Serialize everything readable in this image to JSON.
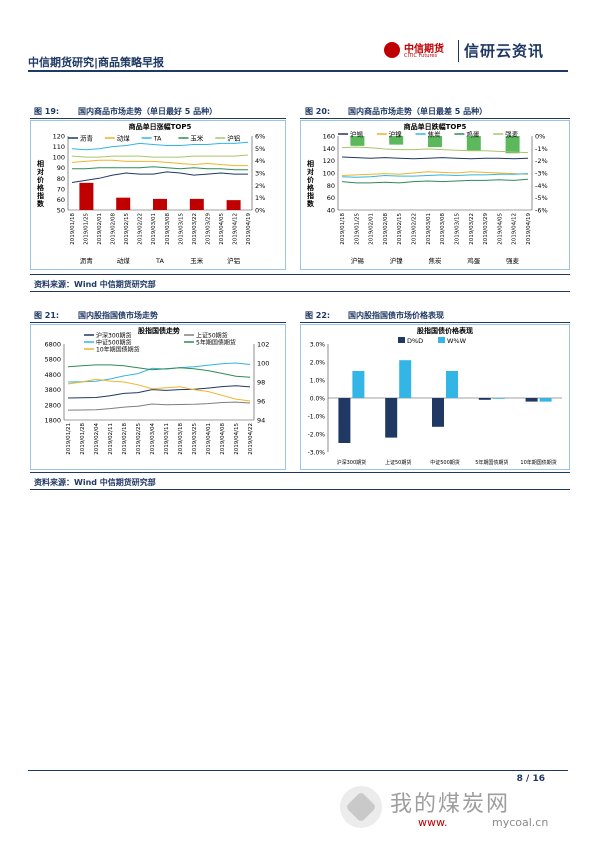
{
  "header": {
    "title": "中信期货研究|商品策略早报",
    "logo_cn": "中信期货",
    "logo_en": "CITIC Futures",
    "brand": "信研云资讯"
  },
  "figures": {
    "fig19": {
      "label": "图 19:",
      "title": "国内商品市场走势（单日最好 5 品种）"
    },
    "fig20": {
      "label": "图 20:",
      "title": "国内商品市场走势（单日最差 5 品种）"
    },
    "fig21": {
      "label": "图 21:",
      "title": "国内股指国债市场走势"
    },
    "fig22": {
      "label": "图 22:",
      "title": "国内股指国债市场价格表现"
    }
  },
  "source1": "资料来源：Wind  中信期货研究部",
  "source2": "资料来源：Wind  中信期货研究部",
  "page_number": "8 / 16",
  "watermark": {
    "cn": "我的煤炭网",
    "url_a": "www.",
    "url_b": "mycoal.cn"
  },
  "colors": {
    "accent": "#1f3864",
    "brand_red": "#c00000",
    "bar_red": "#c00000",
    "bar_green": "#5cb85c",
    "bar_dd": "#1f3864",
    "bar_ww": "#33b5e5"
  },
  "chart_data": [
    {
      "type": "line",
      "title": "商品单日涨幅TOP5",
      "ylabel": "相对价格指数",
      "x": [
        "2019/01/18",
        "2019/01/25",
        "2019/02/01",
        "2019/02/08",
        "2019/02/15",
        "2019/02/22",
        "2019/03/01",
        "2019/03/08",
        "2019/03/15",
        "2019/03/22",
        "2019/03/29",
        "2019/04/05",
        "2019/04/12",
        "2019/04/19"
      ],
      "ylim": [
        50,
        120
      ],
      "y2lim": [
        0,
        6
      ],
      "yticks": [
        50,
        60,
        70,
        80,
        90,
        100,
        110,
        120
      ],
      "y2ticks": [
        "0%",
        "1%",
        "2%",
        "3%",
        "4%",
        "5%",
        "6%"
      ],
      "series": [
        {
          "name": "沥青",
          "color": "#1f3864",
          "values": [
            76,
            78,
            80,
            83,
            85,
            84,
            84,
            86,
            85,
            83,
            84,
            85,
            84,
            84
          ]
        },
        {
          "name": "动煤",
          "color": "#f0b429",
          "values": [
            95,
            96,
            97,
            97,
            96,
            96,
            96,
            95,
            94,
            93,
            94,
            93,
            92,
            92
          ]
        },
        {
          "name": "TA",
          "color": "#33b5e5",
          "values": [
            108,
            107,
            108,
            110,
            111,
            113,
            112,
            111,
            111,
            112,
            112,
            113,
            113,
            114
          ]
        },
        {
          "name": "玉米",
          "color": "#2e8b57",
          "values": [
            89,
            89,
            90,
            90,
            90,
            90,
            91,
            90,
            89,
            90,
            89,
            89,
            88,
            88
          ]
        },
        {
          "name": "沪铝",
          "color": "#a9c56b",
          "values": [
            101,
            100,
            100,
            101,
            101,
            101,
            100,
            100,
            100,
            101,
            101,
            101,
            101,
            102
          ]
        }
      ],
      "bars": {
        "categories": [
          "沥青",
          "动煤",
          "TA",
          "玉米",
          "沪铝"
        ],
        "values": [
          2.2,
          1.0,
          0.9,
          0.9,
          0.8
        ]
      }
    },
    {
      "type": "line",
      "title": "商品单日跌幅TOP5",
      "ylabel": "相对价格指数",
      "x": [
        "2019/01/18",
        "2019/01/25",
        "2019/02/01",
        "2019/02/08",
        "2019/02/15",
        "2019/02/22",
        "2019/03/01",
        "2019/03/08",
        "2019/03/15",
        "2019/03/22",
        "2019/03/29",
        "2019/04/05",
        "2019/04/12",
        "2019/04/19"
      ],
      "ylim": [
        40,
        160
      ],
      "y2lim": [
        -6,
        0
      ],
      "yticks": [
        40,
        60,
        80,
        100,
        120,
        140,
        160
      ],
      "y2ticks": [
        "-6%",
        "-5%",
        "-4%",
        "-3%",
        "-2%",
        "-1%",
        "0%"
      ],
      "series": [
        {
          "name": "沪锡",
          "color": "#1f3864",
          "values": [
            126,
            125,
            124,
            125,
            124,
            123,
            124,
            125,
            124,
            123,
            124,
            124,
            123,
            124
          ]
        },
        {
          "name": "沪镍",
          "color": "#f0b429",
          "values": [
            96,
            97,
            98,
            99,
            98,
            100,
            102,
            101,
            100,
            102,
            101,
            100,
            99,
            98
          ]
        },
        {
          "name": "焦炭",
          "color": "#33b5e5",
          "values": [
            94,
            93,
            94,
            96,
            95,
            95,
            96,
            97,
            96,
            97,
            97,
            98,
            98,
            99
          ]
        },
        {
          "name": "鸡蛋",
          "color": "#2e8b57",
          "values": [
            86,
            84,
            84,
            85,
            84,
            86,
            87,
            86,
            87,
            88,
            88,
            89,
            88,
            90
          ]
        },
        {
          "name": "强麦",
          "color": "#a9c56b",
          "values": [
            141,
            142,
            141,
            139,
            138,
            138,
            139,
            138,
            137,
            136,
            136,
            135,
            134,
            133
          ]
        }
      ],
      "bars": {
        "categories": [
          "沪锡",
          "沪镍",
          "焦炭",
          "鸡蛋",
          "强麦"
        ],
        "values": [
          -0.8,
          -0.7,
          -0.9,
          -1.2,
          -1.4
        ]
      }
    },
    {
      "type": "line",
      "title": "股指国债走势",
      "x": [
        "2019/01/21",
        "2019/01/28",
        "2019/02/04",
        "2019/02/11",
        "2019/02/18",
        "2019/02/25",
        "2019/03/04",
        "2019/03/11",
        "2019/03/18",
        "2019/03/25",
        "2019/04/01",
        "2019/04/08",
        "2019/04/15",
        "2019/04/22"
      ],
      "ylim": [
        1800,
        6800
      ],
      "y2lim": [
        94,
        102
      ],
      "yticks": [
        1800,
        2800,
        3800,
        4800,
        5800,
        6800
      ],
      "y2ticks": [
        94,
        96,
        98,
        100,
        102
      ],
      "series": [
        {
          "name": "沪深300期货",
          "color": "#1f3864",
          "values": [
            3250,
            3260,
            3280,
            3400,
            3550,
            3600,
            3800,
            3750,
            3800,
            3820,
            3900,
            4000,
            4050,
            3980
          ]
        },
        {
          "name": "上证50期货",
          "color": "#7f7f7f",
          "values": [
            2450,
            2460,
            2480,
            2550,
            2650,
            2700,
            2850,
            2800,
            2820,
            2830,
            2880,
            2950,
            2980,
            2920
          ]
        },
        {
          "name": "中证500期货",
          "color": "#33b5e5",
          "values": [
            4300,
            4320,
            4350,
            4500,
            4700,
            4850,
            5200,
            5150,
            5250,
            5300,
            5400,
            5500,
            5550,
            5450
          ]
        },
        {
          "name": "5年期国债期货",
          "color": "#2e8b57",
          "values": [
            99.6,
            99.7,
            99.8,
            99.8,
            99.7,
            99.5,
            99.3,
            99.4,
            99.5,
            99.4,
            99.2,
            98.9,
            98.6,
            98.5
          ]
        },
        {
          "name": "10年期国债期货",
          "color": "#f0b429",
          "values": [
            97.8,
            98.0,
            98.3,
            98.1,
            98.0,
            97.7,
            97.3,
            97.4,
            97.5,
            97.2,
            97.0,
            96.6,
            96.2,
            96.0
          ]
        }
      ]
    },
    {
      "type": "bar",
      "title": "股指国债价格表现",
      "categories": [
        "沪深300期货",
        "上证50期货",
        "中证500期货",
        "5年期国债期货",
        "10年期国债期货"
      ],
      "ylim": [
        -3.0,
        3.0
      ],
      "yticks": [
        "-3.0%",
        "-2.0%",
        "-1.0%",
        "0.0%",
        "1.0%",
        "2.0%",
        "3.0%"
      ],
      "series": [
        {
          "name": "D%D",
          "color": "#1f3864",
          "values": [
            -2.5,
            -2.2,
            -1.6,
            -0.1,
            -0.2
          ]
        },
        {
          "name": "W%W",
          "color": "#33b5e5",
          "values": [
            1.5,
            2.1,
            1.5,
            0.0,
            -0.2
          ]
        }
      ]
    }
  ]
}
